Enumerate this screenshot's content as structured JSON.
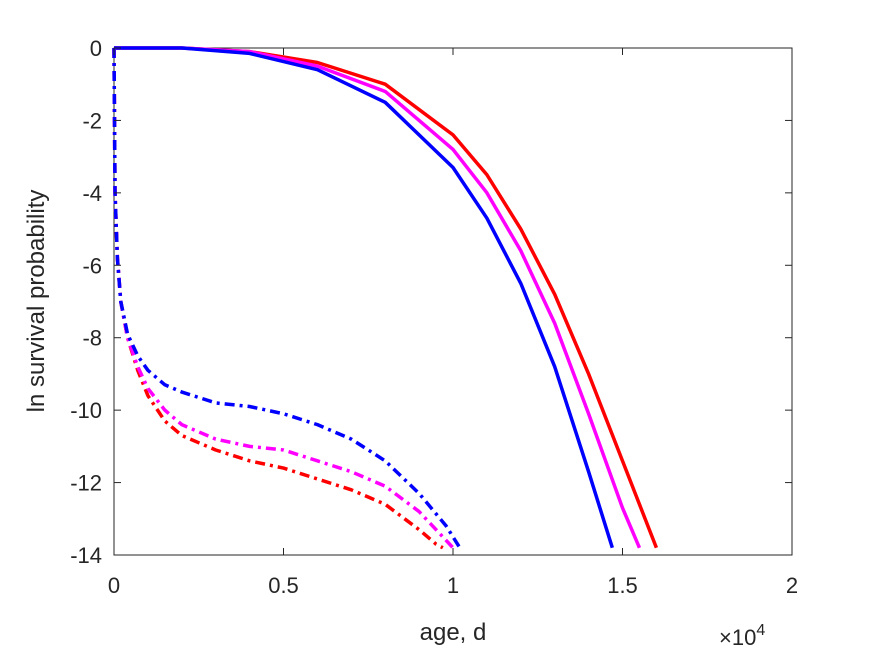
{
  "chart_data": {
    "type": "line",
    "xlabel": "age, d",
    "ylabel": "ln survival probability",
    "x_exponent_label": {
      "base": "×10",
      "exponent": "4"
    },
    "x_scale": 10000,
    "xlim": [
      0,
      20000
    ],
    "ylim": [
      -14,
      0
    ],
    "x_ticks": [
      0,
      5000,
      10000,
      15000,
      20000
    ],
    "x_tick_labels": [
      "0",
      "0.5",
      "1",
      "1.5",
      "2"
    ],
    "y_ticks": [
      0,
      -2,
      -4,
      -6,
      -8,
      -10,
      -12,
      -14
    ],
    "y_tick_labels": [
      "0",
      "-2",
      "-4",
      "-6",
      "-8",
      "-10",
      "-12",
      "-14"
    ],
    "grid": false,
    "series": [
      {
        "color": "#ff0000",
        "style": "solid",
        "x": [
          0,
          2000,
          4000,
          6000,
          8000,
          10000,
          11000,
          12000,
          13000,
          14000,
          15000,
          16000
        ],
        "y": [
          0,
          0,
          -0.1,
          -0.4,
          -1.0,
          -2.4,
          -3.5,
          -5.0,
          -6.8,
          -9.0,
          -11.4,
          -13.8
        ]
      },
      {
        "color": "#ff00ff",
        "style": "solid",
        "x": [
          0,
          2000,
          4000,
          6000,
          8000,
          10000,
          11000,
          12000,
          13000,
          14000,
          15000,
          15500
        ],
        "y": [
          0,
          0,
          -0.1,
          -0.5,
          -1.2,
          -2.8,
          -4.0,
          -5.6,
          -7.6,
          -10.1,
          -12.7,
          -13.8
        ]
      },
      {
        "color": "#0000ff",
        "style": "solid",
        "x": [
          0,
          2000,
          4000,
          6000,
          8000,
          10000,
          11000,
          12000,
          13000,
          14000,
          14700
        ],
        "y": [
          0,
          0,
          -0.15,
          -0.6,
          -1.5,
          -3.3,
          -4.7,
          -6.5,
          -8.8,
          -11.7,
          -13.8
        ]
      },
      {
        "color": "#ff0000",
        "style": "dashdot",
        "x": [
          0,
          30,
          100,
          200,
          400,
          700,
          1000,
          1500,
          2000,
          3000,
          4000,
          5000,
          6000,
          7000,
          8000,
          9000,
          9500,
          9700
        ],
        "y": [
          0,
          -4.0,
          -5.8,
          -7.0,
          -8.0,
          -8.9,
          -9.6,
          -10.3,
          -10.7,
          -11.1,
          -11.4,
          -11.6,
          -11.9,
          -12.2,
          -12.6,
          -13.3,
          -13.7,
          -13.8
        ]
      },
      {
        "color": "#ff00ff",
        "style": "dashdot",
        "x": [
          0,
          30,
          100,
          200,
          400,
          700,
          1000,
          1500,
          2000,
          3000,
          4000,
          5000,
          6000,
          7000,
          8000,
          9000,
          9700,
          10000
        ],
        "y": [
          0,
          -4.0,
          -5.8,
          -7.0,
          -8.0,
          -8.8,
          -9.4,
          -10.0,
          -10.4,
          -10.8,
          -11.0,
          -11.1,
          -11.4,
          -11.7,
          -12.1,
          -12.8,
          -13.5,
          -13.8
        ]
      },
      {
        "color": "#0000ff",
        "style": "dashdot",
        "x": [
          0,
          30,
          100,
          200,
          400,
          700,
          1000,
          1500,
          2000,
          3000,
          4000,
          5000,
          6000,
          7000,
          8000,
          9000,
          9800,
          10200
        ],
        "y": [
          0,
          -4.0,
          -5.8,
          -7.0,
          -7.9,
          -8.5,
          -8.9,
          -9.3,
          -9.5,
          -9.8,
          -9.9,
          -10.1,
          -10.4,
          -10.8,
          -11.4,
          -12.3,
          -13.2,
          -13.8
        ]
      }
    ]
  }
}
